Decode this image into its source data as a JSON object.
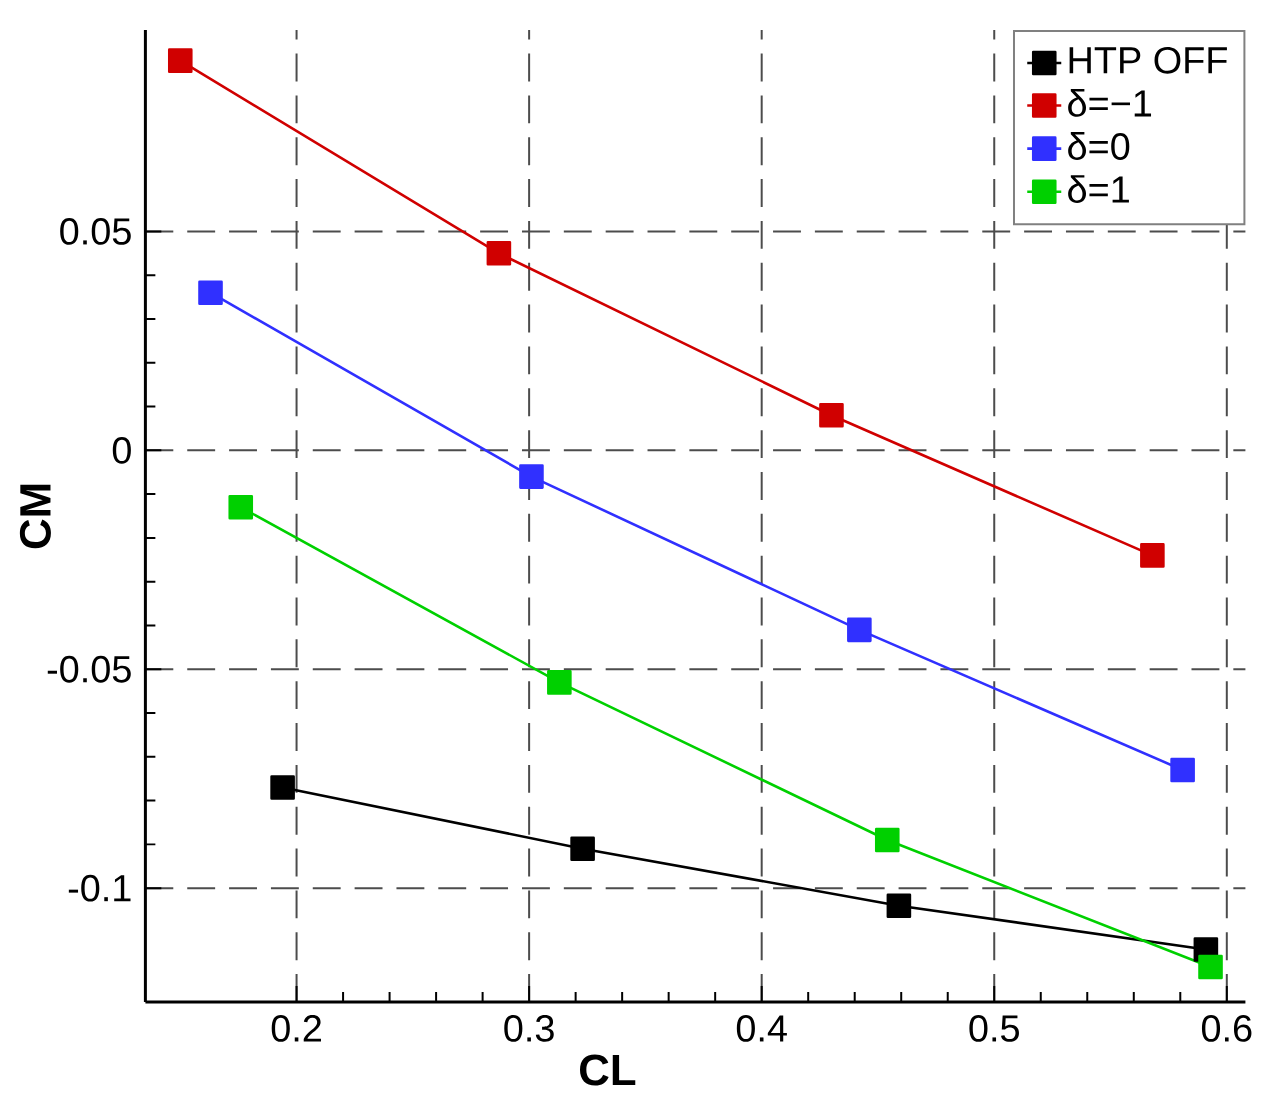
{
  "chart_data": {
    "type": "line",
    "xlabel": "CL",
    "ylabel": "CM",
    "xlim": [
      0.135,
      0.608
    ],
    "ylim": [
      -0.126,
      0.096
    ],
    "xticks": [
      0.2,
      0.3,
      0.4,
      0.5,
      0.6
    ],
    "yticks": [
      -0.1,
      -0.05,
      0,
      0.05
    ],
    "grid": true,
    "legend": "top right",
    "marker": "square",
    "line_style": "solid",
    "series": [
      {
        "name": "HTP OFF",
        "color": "#000000",
        "x": [
          0.194,
          0.323,
          0.459,
          0.591
        ],
        "values": [
          -0.077,
          -0.091,
          -0.104,
          -0.114
        ]
      },
      {
        "name": "δ=−1",
        "color": "#d00000",
        "x": [
          0.15,
          0.287,
          0.43,
          0.568
        ],
        "values": [
          0.089,
          0.045,
          0.008,
          -0.024
        ]
      },
      {
        "name": "δ=0",
        "color": "#3030ff",
        "x": [
          0.163,
          0.301,
          0.442,
          0.581
        ],
        "values": [
          0.036,
          -0.006,
          -0.041,
          -0.073
        ]
      },
      {
        "name": "δ=1",
        "color": "#00d000",
        "x": [
          0.176,
          0.313,
          0.454,
          0.593
        ],
        "values": [
          -0.013,
          -0.053,
          -0.089,
          -0.118
        ]
      }
    ]
  }
}
